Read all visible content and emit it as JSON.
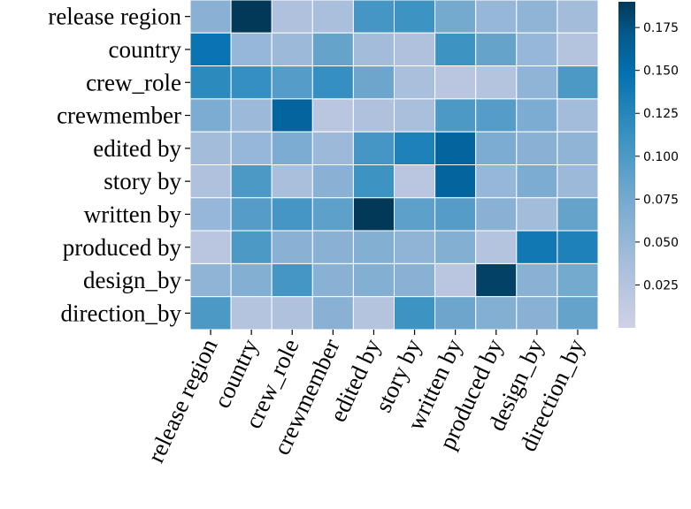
{
  "chart_data": {
    "type": "heatmap",
    "rows": [
      "release region",
      "country",
      "crew_role",
      "crewmember",
      "edited by",
      "story by",
      "written by",
      "produced by",
      "design_by",
      "direction_by"
    ],
    "columns": [
      "release region",
      "country",
      "crew_role",
      "crewmember",
      "edited by",
      "story by",
      "written by",
      "produced by",
      "design_by",
      "direction_by"
    ],
    "values": [
      [
        0.06,
        0.19,
        0.03,
        0.035,
        0.105,
        0.11,
        0.075,
        0.05,
        0.055,
        0.04
      ],
      [
        0.145,
        0.05,
        0.045,
        0.085,
        0.04,
        0.03,
        0.11,
        0.085,
        0.05,
        0.025
      ],
      [
        0.12,
        0.115,
        0.095,
        0.115,
        0.08,
        0.035,
        0.02,
        0.025,
        0.055,
        0.1
      ],
      [
        0.07,
        0.045,
        0.16,
        0.02,
        0.03,
        0.035,
        0.1,
        0.095,
        0.07,
        0.04
      ],
      [
        0.04,
        0.05,
        0.07,
        0.045,
        0.105,
        0.13,
        0.16,
        0.07,
        0.06,
        0.055
      ],
      [
        0.03,
        0.1,
        0.035,
        0.06,
        0.11,
        0.02,
        0.16,
        0.05,
        0.07,
        0.045
      ],
      [
        0.05,
        0.095,
        0.105,
        0.09,
        0.19,
        0.09,
        0.095,
        0.06,
        0.04,
        0.085
      ],
      [
        0.02,
        0.1,
        0.06,
        0.06,
        0.065,
        0.055,
        0.065,
        0.025,
        0.14,
        0.13
      ],
      [
        0.055,
        0.065,
        0.105,
        0.06,
        0.065,
        0.06,
        0.02,
        0.185,
        0.06,
        0.075
      ],
      [
        0.1,
        0.025,
        0.03,
        0.06,
        0.025,
        0.11,
        0.08,
        0.065,
        0.06,
        0.085
      ]
    ],
    "colorbar": {
      "min": 0.0,
      "max": 0.19,
      "ticks": [
        0.025,
        0.05,
        0.075,
        0.1,
        0.125,
        0.15,
        0.175
      ],
      "tick_labels": [
        "0.025",
        "0.050",
        "0.075",
        "0.100",
        "0.125",
        "0.150",
        "0.175"
      ],
      "colormap": "PuBu",
      "low_color": "#d0d1e6",
      "high_color": "#023858"
    },
    "title": "",
    "xlabel": "",
    "ylabel": "",
    "grid_lines": "white"
  }
}
